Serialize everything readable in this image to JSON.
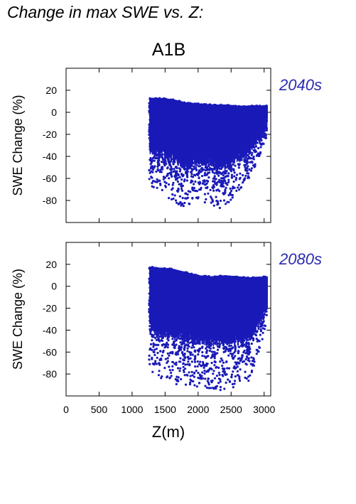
{
  "page": {
    "title": "Change in max SWE vs. Z:",
    "scenario": "A1B"
  },
  "colors": {
    "points": "#1a1ab8",
    "axis": "#000000",
    "period_label": "#2a2ab0"
  },
  "chart_data": [
    {
      "type": "scatter",
      "panel_label": "2040s",
      "ylabel": "SWE Change (%)",
      "xlabel": "",
      "xlim": [
        0,
        3100
      ],
      "ylim": [
        -100,
        40
      ],
      "yticks": [
        "20",
        "0",
        "-20",
        "-40",
        "-60",
        "-80"
      ],
      "xticks": [],
      "grid": false,
      "point_x_range": [
        1260,
        3040
      ],
      "envelope": {
        "x": [
          1260,
          1400,
          1600,
          1800,
          2000,
          2200,
          2400,
          2600,
          2800,
          3040
        ],
        "y_max": [
          13,
          13,
          12,
          9,
          8,
          7,
          7,
          6,
          6,
          6
        ],
        "y_min": [
          -67,
          -70,
          -80,
          -88,
          -80,
          -85,
          -88,
          -72,
          -60,
          -22
        ]
      }
    },
    {
      "type": "scatter",
      "panel_label": "2080s",
      "ylabel": "SWE Change (%)",
      "xlabel": "Z(m)",
      "xlim": [
        0,
        3100
      ],
      "ylim": [
        -100,
        40
      ],
      "yticks": [
        "20",
        "0",
        "-20",
        "-40",
        "-60",
        "-80"
      ],
      "xticks": [
        "0",
        "500",
        "1000",
        "1500",
        "2000",
        "2500",
        "3000"
      ],
      "grid": false,
      "point_x_range": [
        1260,
        3040
      ],
      "envelope": {
        "x": [
          1260,
          1400,
          1600,
          1800,
          2000,
          2200,
          2400,
          2600,
          2800,
          3040
        ],
        "y_max": [
          18,
          17,
          16,
          13,
          10,
          9,
          10,
          9,
          8,
          9
        ],
        "y_min": [
          -75,
          -85,
          -88,
          -92,
          -92,
          -94,
          -95,
          -92,
          -85,
          -35
        ]
      }
    }
  ]
}
